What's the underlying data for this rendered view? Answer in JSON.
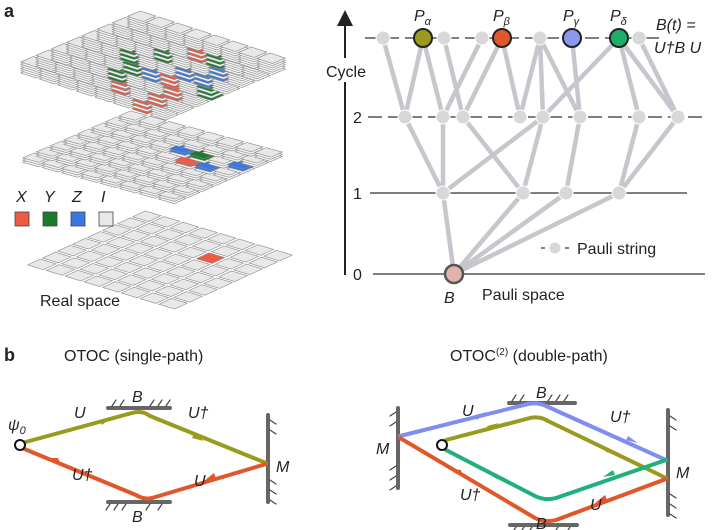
{
  "panel_a": {
    "label": "a",
    "real_space_label": "Real space",
    "legend": [
      {
        "symbol": "X",
        "color": "#ef5a44"
      },
      {
        "symbol": "Y",
        "color": "#1b7a2c"
      },
      {
        "symbol": "Z",
        "color": "#3a78e0"
      },
      {
        "symbol": "I",
        "color": "#e8e8e8"
      }
    ],
    "axis_label": "Cycle",
    "cycle_ticks": [
      "0",
      "1",
      "2"
    ],
    "x_axis_label": "Pauli space",
    "operator_label": "B",
    "operator_color": "#e2b3ac",
    "top_strings": [
      {
        "name": "P",
        "sub": "α",
        "color": "#9a9a1e"
      },
      {
        "name": "P",
        "sub": "β",
        "color": "#e0582a"
      },
      {
        "name": "P",
        "sub": "γ",
        "color": "#8a98ee"
      },
      {
        "name": "P",
        "sub": "δ",
        "color": "#1fae6a"
      }
    ],
    "evolution_line1": "B(t) =",
    "evolution_line2": "U†B U",
    "legend_pauli_string": "Pauli string"
  },
  "panel_b": {
    "label": "b",
    "left_title": "OTOC (single-path)",
    "right_title_main": "OTOC",
    "right_title_sup": "(2)",
    "right_title_rest": " (double-path)",
    "psi": "ψ",
    "psi_sub": "0",
    "U": "U",
    "Udag": "U†",
    "B": "B",
    "M": "M",
    "path_colors": {
      "forward": "#9a9a1e",
      "backward": "#e0582a",
      "forward2": "#7f8ef0",
      "backward2": "#22b07a"
    }
  }
}
